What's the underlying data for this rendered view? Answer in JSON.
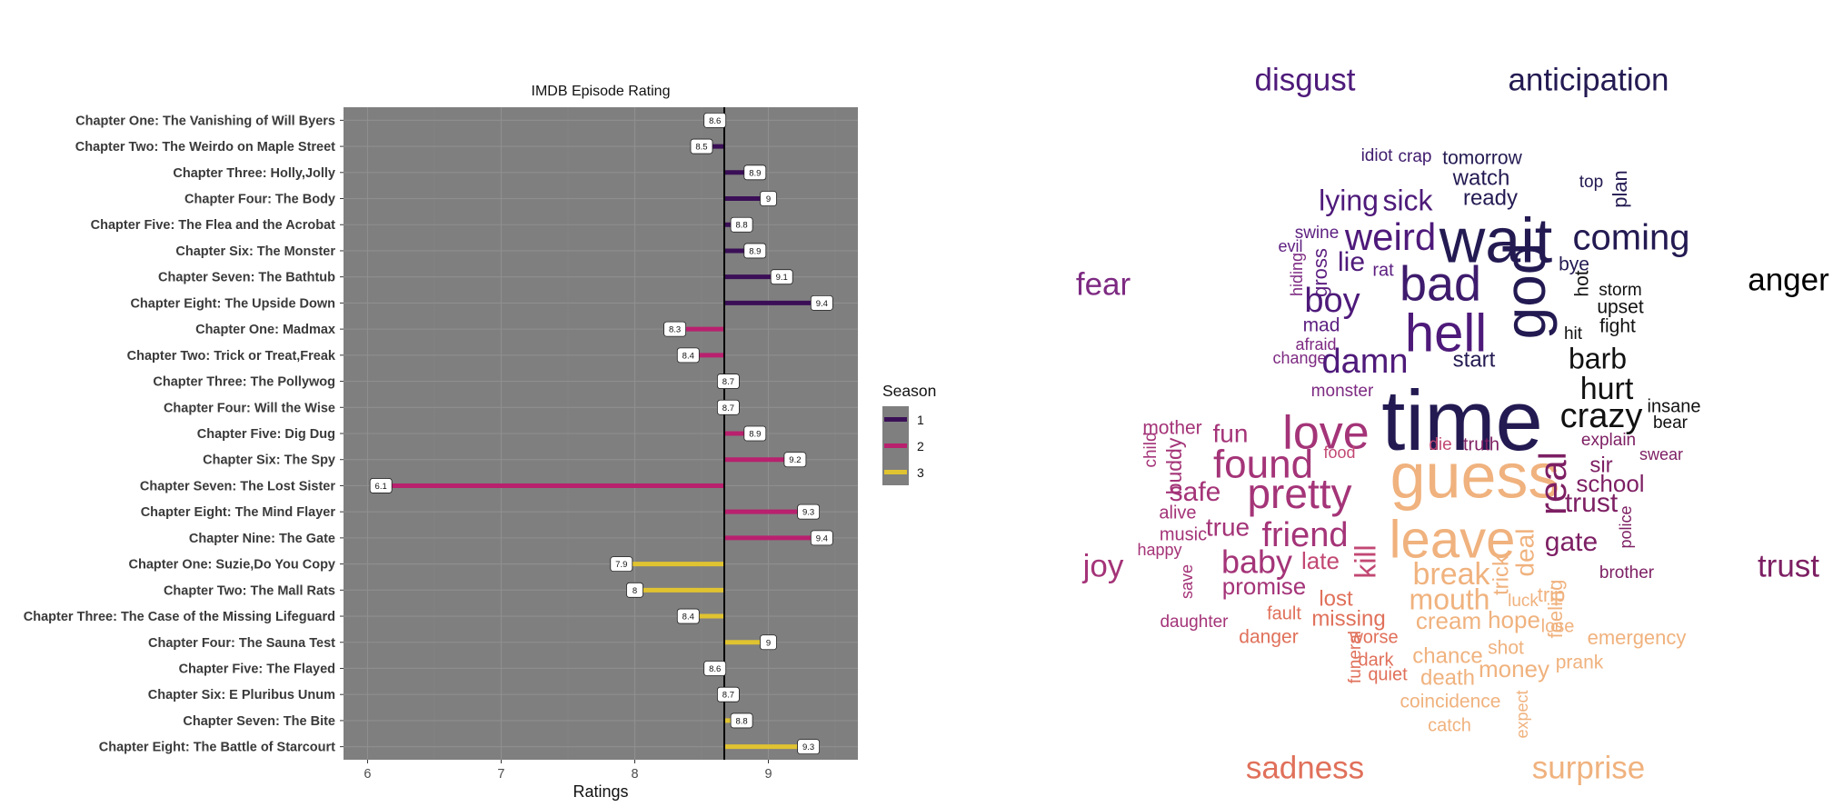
{
  "chart_data": {
    "type": "bar",
    "orientation": "horizontal-lollipop",
    "title": "IMDB Episode Rating",
    "xlabel": "Ratings",
    "ylabel": "",
    "xlim": [
      5.82,
      9.67
    ],
    "xticks": [
      6,
      7,
      8,
      9
    ],
    "reference_line": 8.67,
    "grid": true,
    "legend": {
      "title": "Season",
      "placement": "right"
    },
    "series": [
      {
        "name": "1",
        "color": "#3b0f57"
      },
      {
        "name": "2",
        "color": "#b9206e"
      },
      {
        "name": "3",
        "color": "#e0c330"
      }
    ],
    "categories": [
      "Chapter One: The Vanishing of Will Byers",
      "Chapter Two: The Weirdo on Maple Street",
      "Chapter Three: Holly,Jolly",
      "Chapter Four: The Body",
      "Chapter Five: The Flea and the Acrobat",
      "Chapter Six: The Monster",
      "Chapter Seven: The Bathtub",
      "Chapter Eight: The Upside Down",
      "Chapter One: Madmax",
      "Chapter Two: Trick or Treat,Freak",
      "Chapter Three: The Pollywog",
      "Chapter Four: Will the Wise",
      "Chapter Five: Dig Dug",
      "Chapter Six: The Spy",
      "Chapter Seven: The Lost Sister",
      "Chapter Eight: The Mind Flayer",
      "Chapter Nine: The Gate",
      "Chapter One: Suzie,Do You Copy",
      "Chapter Two: The Mall Rats",
      "Chapter Three: The Case of the Missing Lifeguard",
      "Chapter Four: The Sauna Test",
      "Chapter Five: The Flayed",
      "Chapter Six: E Pluribus Unum",
      "Chapter Seven: The Bite",
      "Chapter Eight: The Battle of Starcourt"
    ],
    "values": [
      8.6,
      8.5,
      8.9,
      9,
      8.8,
      8.9,
      9.1,
      9.4,
      8.3,
      8.4,
      8.7,
      8.7,
      8.9,
      9.2,
      6.1,
      9.3,
      9.4,
      7.9,
      8,
      8.4,
      9,
      8.6,
      8.7,
      8.8,
      9.3
    ],
    "value_labels": [
      "8.6",
      "8.5",
      "8.9",
      "9",
      "8.8",
      "8.9",
      "9.1",
      "9.4",
      "8.3",
      "8.4",
      "8.7",
      "8.7",
      "8.9",
      "9.2",
      "6.1",
      "9.3",
      "9.4",
      "7.9",
      "8",
      "8.4",
      "9",
      "8.6",
      "8.7",
      "8.8",
      "9.3"
    ],
    "seasons": [
      1,
      1,
      1,
      1,
      1,
      1,
      1,
      1,
      2,
      2,
      2,
      2,
      2,
      2,
      2,
      2,
      2,
      3,
      3,
      3,
      3,
      3,
      3,
      3,
      3
    ]
  },
  "wordcloud": {
    "emotion_labels": [
      {
        "text": "disgust",
        "color": "#4e1a7a"
      },
      {
        "text": "anticipation",
        "color": "#241a52"
      },
      {
        "text": "fear",
        "color": "#7d2a82"
      },
      {
        "text": "anger",
        "color": "#000000"
      },
      {
        "text": "joy",
        "color": "#a43478"
      },
      {
        "text": "trust",
        "color": "#7d1f63"
      },
      {
        "text": "sadness",
        "color": "#e0705a"
      },
      {
        "text": "surprise",
        "color": "#f0b27e"
      }
    ],
    "words": [
      {
        "text": "idiot",
        "color": "#3e1b6d"
      },
      {
        "text": "crap",
        "color": "#3e1b6d"
      },
      {
        "text": "tomorrow",
        "color": "#241a52"
      },
      {
        "text": "watch",
        "color": "#241a52"
      },
      {
        "text": "top",
        "color": "#241a52"
      },
      {
        "text": "plan",
        "color": "#241a52"
      },
      {
        "text": "lying",
        "color": "#4e1a7a"
      },
      {
        "text": "sick",
        "color": "#4e1a7a"
      },
      {
        "text": "ready",
        "color": "#241a52"
      },
      {
        "text": "swine",
        "color": "#5c1f80"
      },
      {
        "text": "weird",
        "color": "#4e1a7a"
      },
      {
        "text": "wait",
        "color": "#241a52"
      },
      {
        "text": "coming",
        "color": "#241a52"
      },
      {
        "text": "evil",
        "color": "#5c1f80"
      },
      {
        "text": "hiding",
        "color": "#7d2a82"
      },
      {
        "text": "gross",
        "color": "#5c1f80"
      },
      {
        "text": "lie",
        "color": "#4e1a7a"
      },
      {
        "text": "rat",
        "color": "#5c1f80"
      },
      {
        "text": "bad",
        "color": "#3e1b6d"
      },
      {
        "text": "god",
        "color": "#241a52"
      },
      {
        "text": "bye",
        "color": "#241a52"
      },
      {
        "text": "hot",
        "color": "#111111"
      },
      {
        "text": "storm",
        "color": "#111111"
      },
      {
        "text": "boy",
        "color": "#4e1a7a"
      },
      {
        "text": "upset",
        "color": "#111111"
      },
      {
        "text": "mad",
        "color": "#5c1f80"
      },
      {
        "text": "hell",
        "color": "#4e1a7a"
      },
      {
        "text": "hit",
        "color": "#111111"
      },
      {
        "text": "fight",
        "color": "#111111"
      },
      {
        "text": "afraid",
        "color": "#7d2a82"
      },
      {
        "text": "change",
        "color": "#7d2a82"
      },
      {
        "text": "damn",
        "color": "#4e1a7a"
      },
      {
        "text": "start",
        "color": "#241a52"
      },
      {
        "text": "barb",
        "color": "#111111"
      },
      {
        "text": "monster",
        "color": "#7d2a82"
      },
      {
        "text": "time",
        "color": "#241a52"
      },
      {
        "text": "hurt",
        "color": "#111111"
      },
      {
        "text": "insane",
        "color": "#111111"
      },
      {
        "text": "bear",
        "color": "#111111"
      },
      {
        "text": "crazy",
        "color": "#111111"
      },
      {
        "text": "mother",
        "color": "#a43478"
      },
      {
        "text": "fun",
        "color": "#a43478"
      },
      {
        "text": "love",
        "color": "#a43478"
      },
      {
        "text": "child",
        "color": "#a43478"
      },
      {
        "text": "buddy",
        "color": "#a43478"
      },
      {
        "text": "found",
        "color": "#a43478"
      },
      {
        "text": "food",
        "color": "#c24873"
      },
      {
        "text": "die",
        "color": "#c24873"
      },
      {
        "text": "truth",
        "color": "#7d1f63"
      },
      {
        "text": "guess",
        "color": "#f0b27e"
      },
      {
        "text": "real",
        "color": "#7d1f63"
      },
      {
        "text": "explain",
        "color": "#7d1f63"
      },
      {
        "text": "sir",
        "color": "#7d1f63"
      },
      {
        "text": "swear",
        "color": "#7d1f63"
      },
      {
        "text": "safe",
        "color": "#a43478"
      },
      {
        "text": "pretty",
        "color": "#a43478"
      },
      {
        "text": "school",
        "color": "#7d1f63"
      },
      {
        "text": "alive",
        "color": "#a43478"
      },
      {
        "text": "trust",
        "color": "#7d1f63"
      },
      {
        "text": "music",
        "color": "#a43478"
      },
      {
        "text": "true",
        "color": "#a43478"
      },
      {
        "text": "friend",
        "color": "#a43478"
      },
      {
        "text": "leave",
        "color": "#f0b27e"
      },
      {
        "text": "police",
        "color": "#7d1f63"
      },
      {
        "text": "happy",
        "color": "#a43478"
      },
      {
        "text": "kill",
        "color": "#c24873"
      },
      {
        "text": "gate",
        "color": "#7d1f63"
      },
      {
        "text": "baby",
        "color": "#a43478"
      },
      {
        "text": "late",
        "color": "#c24873"
      },
      {
        "text": "break",
        "color": "#f0b27e"
      },
      {
        "text": "trick",
        "color": "#f0b27e"
      },
      {
        "text": "deal",
        "color": "#f0b27e"
      },
      {
        "text": "brother",
        "color": "#7d1f63"
      },
      {
        "text": "save",
        "color": "#a43478"
      },
      {
        "text": "promise",
        "color": "#a43478"
      },
      {
        "text": "lost",
        "color": "#e0705a"
      },
      {
        "text": "mouth",
        "color": "#f0b27e"
      },
      {
        "text": "luck",
        "color": "#f0b27e"
      },
      {
        "text": "trip",
        "color": "#f0b27e"
      },
      {
        "text": "feeling",
        "color": "#f0b27e"
      },
      {
        "text": "daughter",
        "color": "#a43478"
      },
      {
        "text": "fault",
        "color": "#e0705a"
      },
      {
        "text": "missing",
        "color": "#e0705a"
      },
      {
        "text": "cream",
        "color": "#f0b27e"
      },
      {
        "text": "hope",
        "color": "#f0b27e"
      },
      {
        "text": "lose",
        "color": "#f0b27e"
      },
      {
        "text": "danger",
        "color": "#e0705a"
      },
      {
        "text": "worse",
        "color": "#e0705a"
      },
      {
        "text": "emergency",
        "color": "#f0b27e"
      },
      {
        "text": "funeral",
        "color": "#e0705a"
      },
      {
        "text": "dark",
        "color": "#e0705a"
      },
      {
        "text": "chance",
        "color": "#f0b27e"
      },
      {
        "text": "shot",
        "color": "#f0b27e"
      },
      {
        "text": "quiet",
        "color": "#e0705a"
      },
      {
        "text": "money",
        "color": "#f0b27e"
      },
      {
        "text": "prank",
        "color": "#f0b27e"
      },
      {
        "text": "death",
        "color": "#f0b27e"
      },
      {
        "text": "coincidence",
        "color": "#f0b27e"
      },
      {
        "text": "expect",
        "color": "#f0b27e"
      },
      {
        "text": "catch",
        "color": "#f0b27e"
      }
    ]
  }
}
